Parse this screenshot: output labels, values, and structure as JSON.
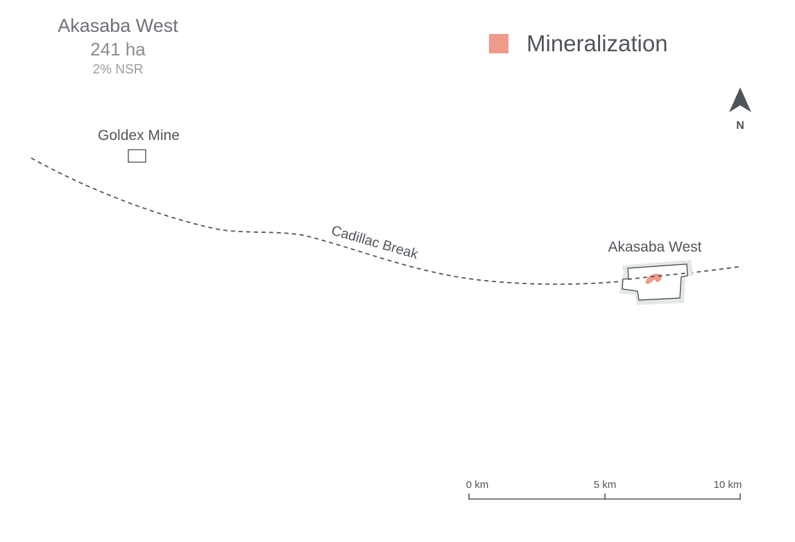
{
  "info": {
    "property_name": "Akasaba West",
    "area": "241 ha",
    "royalty": "2% NSR"
  },
  "legend": {
    "swatch_color": "#ef9a8a",
    "label": "Mineralization"
  },
  "north_arrow": {
    "label": "N"
  },
  "features": {
    "goldex_label": "Goldex Mine",
    "fault_label": "Cadillac Break",
    "property_label": "Akasaba West"
  },
  "scale_bar": {
    "labels": [
      "0 km",
      "5 km",
      "10 km"
    ]
  },
  "colors": {
    "fault": "#50555b",
    "outline": "#3a3d40",
    "buffer": "#e3e7e7",
    "mineralization": "#ef9a8a"
  }
}
